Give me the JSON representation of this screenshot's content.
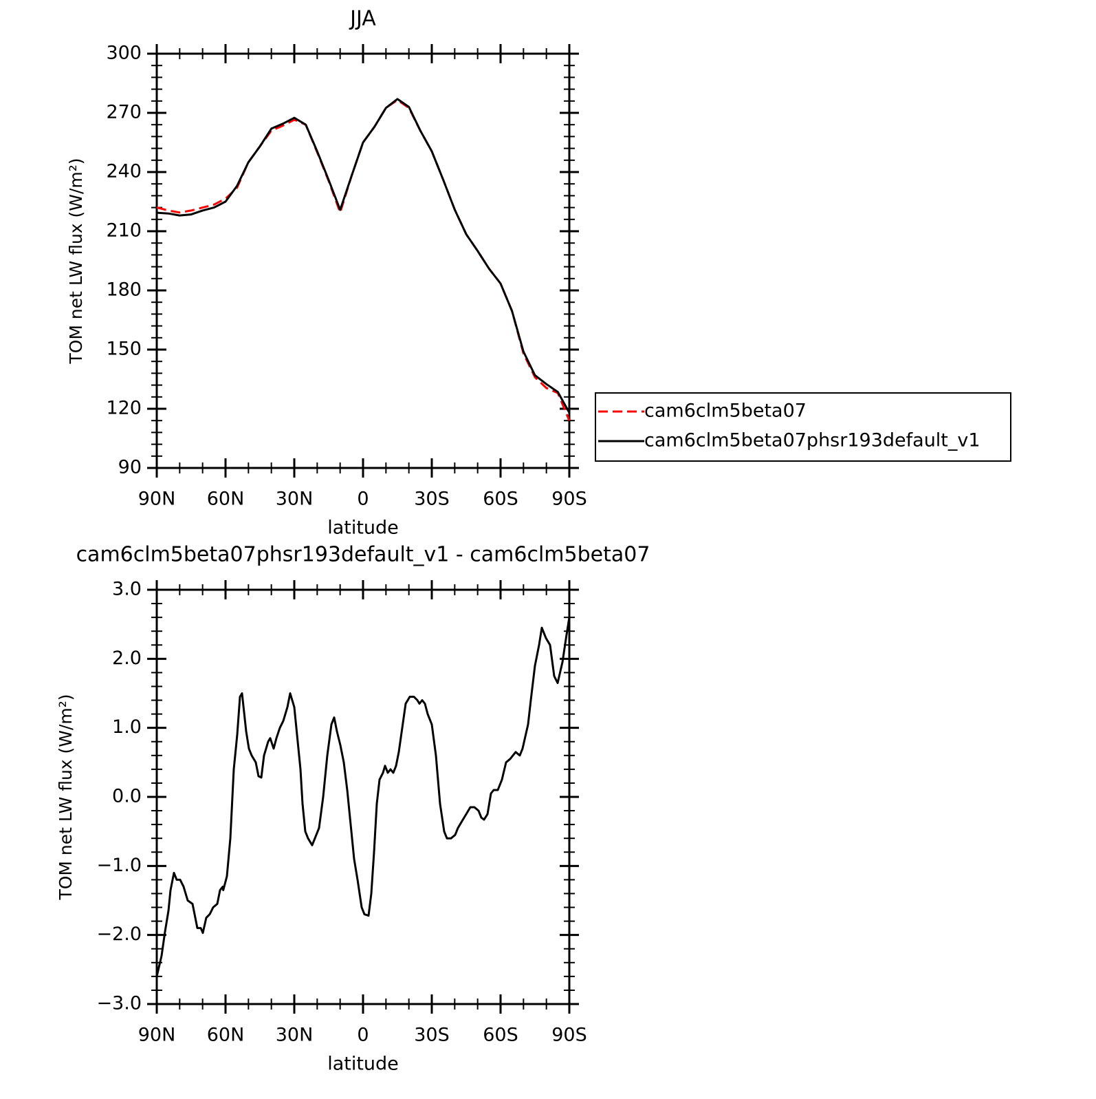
{
  "chart_data": [
    {
      "type": "line",
      "title": "JJA",
      "xlabel": "latitude",
      "ylabel": "TOM net LW flux (W/m²)",
      "x": [
        90,
        85,
        80,
        75,
        70,
        65,
        60,
        55,
        50,
        45,
        40,
        35,
        30,
        25,
        20,
        15,
        10,
        5,
        0,
        -5,
        -10,
        -15,
        -20,
        -25,
        -30,
        -35,
        -40,
        -45,
        -50,
        -55,
        -60,
        -65,
        -70,
        -75,
        -80,
        -85,
        -90
      ],
      "series": [
        {
          "name": "cam6clm5beta07",
          "color": "#ff0000",
          "style": "dashed",
          "values": [
            222,
            220.5,
            219.5,
            220.5,
            222,
            223.5,
            226.5,
            232,
            245,
            253,
            261,
            263.5,
            266.5,
            264,
            250,
            235.5,
            219.5,
            238,
            255,
            263,
            272.5,
            276.5,
            272.5,
            261,
            250.5,
            236,
            221,
            208.5,
            200,
            191,
            183.5,
            169.5,
            148,
            136,
            130.5,
            128,
            114
          ]
        },
        {
          "name": "cam6clm5beta07phsr193default_v1",
          "color": "#000000",
          "style": "solid",
          "values": [
            219.4,
            219,
            218,
            218.5,
            220.5,
            222,
            225,
            233,
            245,
            253,
            262,
            264.5,
            267.5,
            264,
            250.5,
            236,
            220.8,
            238,
            255,
            263,
            272.5,
            277,
            273,
            261,
            250.5,
            236,
            221,
            208.5,
            200,
            191,
            183.5,
            169.5,
            149,
            137,
            132.5,
            128.5,
            118
          ]
        }
      ],
      "xlim": [
        90,
        -90
      ],
      "xticks": [
        {
          "value": 90,
          "label": "90N"
        },
        {
          "value": 60,
          "label": "60N"
        },
        {
          "value": 30,
          "label": "30N"
        },
        0,
        {
          "value": -30,
          "label": "30S"
        },
        {
          "value": -60,
          "label": "60S"
        },
        {
          "value": -90,
          "label": "90S"
        }
      ],
      "ylim": [
        90,
        300
      ],
      "yticks": [
        90,
        120,
        150,
        180,
        210,
        240,
        270,
        300
      ],
      "legend": "right"
    },
    {
      "type": "line",
      "title": "cam6clm5beta07phsr193default_v1 - cam6clm5beta07",
      "xlabel": "latitude",
      "ylabel": "TOM net LW flux (W/m²)",
      "x": [
        90,
        87.9,
        86.4,
        84.9,
        84,
        82.5,
        81.3,
        79.8,
        78.3,
        76.5,
        74.4,
        72.3,
        70.8,
        69.9,
        68.4,
        66.9,
        65.4,
        63.6,
        62.4,
        61.2,
        61,
        59.4,
        57.9,
        56.4,
        54.9,
        53.7,
        52.8,
        51,
        49.8,
        48.6,
        46.8,
        45.6,
        44.4,
        43.2,
        41.4,
        40.5,
        39,
        37.8,
        36.3,
        34.8,
        33,
        31.8,
        30,
        28.8,
        27.3,
        26.4,
        25.2,
        24,
        22.2,
        21,
        19.2,
        17.4,
        15.6,
        13.8,
        12.6,
        11.4,
        9.9,
        8.4,
        6.9,
        5.4,
        3.9,
        2.4,
        0.6,
        -0.6,
        -2.4,
        -3.6,
        -4.8,
        -6,
        -7.2,
        -8.7,
        -9.6,
        -10.8,
        -12,
        -13.2,
        -14.4,
        -15.6,
        -17.1,
        -18.6,
        -20.4,
        -22.2,
        -23.7,
        -24.6,
        -25.8,
        -27,
        -28.2,
        -30,
        -31.8,
        -33.6,
        -35.4,
        -36.6,
        -38.4,
        -40.2,
        -41.4,
        -43.2,
        -45,
        -46.8,
        -48.6,
        -50.4,
        -51.6,
        -52.8,
        -54.3,
        -55.8,
        -57,
        -58.8,
        -60.6,
        -62.4,
        -64.2,
        -65.4,
        -66.6,
        -68.4,
        -69.6,
        -72,
        -73.2,
        -75,
        -76.8,
        -78,
        -79.8,
        -81.6,
        -83.4,
        -84.9,
        -87,
        -88.8,
        -90
      ],
      "series": [
        {
          "color": "#000000",
          "style": "solid",
          "values": [
            -2.6,
            -2.3,
            -1.95,
            -1.65,
            -1.35,
            -1.1,
            -1.2,
            -1.2,
            -1.3,
            -1.5,
            -1.55,
            -1.9,
            -1.9,
            -1.97,
            -1.75,
            -1.7,
            -1.6,
            -1.55,
            -1.35,
            -1.3,
            -1.35,
            -1.15,
            -0.6,
            0.4,
            0.9,
            1.45,
            1.5,
            0.95,
            0.7,
            0.6,
            0.5,
            0.3,
            0.28,
            0.6,
            0.8,
            0.85,
            0.7,
            0.85,
            1.0,
            1.1,
            1.3,
            1.5,
            1.3,
            0.9,
            0.4,
            -0.1,
            -0.5,
            -0.6,
            -0.7,
            -0.6,
            -0.45,
            0.0,
            0.6,
            1.05,
            1.15,
            0.95,
            0.75,
            0.5,
            0.1,
            -0.4,
            -0.9,
            -1.2,
            -1.6,
            -1.7,
            -1.72,
            -1.4,
            -0.8,
            -0.1,
            0.25,
            0.35,
            0.45,
            0.35,
            0.4,
            0.35,
            0.45,
            0.65,
            1.0,
            1.35,
            1.45,
            1.45,
            1.4,
            1.35,
            1.4,
            1.35,
            1.2,
            1.05,
            0.6,
            -0.1,
            -0.5,
            -0.6,
            -0.6,
            -0.55,
            -0.45,
            -0.35,
            -0.25,
            -0.15,
            -0.15,
            -0.2,
            -0.3,
            -0.33,
            -0.25,
            0.05,
            0.1,
            0.1,
            0.25,
            0.5,
            0.55,
            0.6,
            0.65,
            0.6,
            0.7,
            1.05,
            1.4,
            1.9,
            2.2,
            2.45,
            2.3,
            2.2,
            1.75,
            1.65,
            1.95,
            2.35,
            2.6
          ]
        }
      ],
      "xlim": [
        90,
        -90
      ],
      "xticks": [
        {
          "value": 90,
          "label": "90N"
        },
        {
          "value": 60,
          "label": "60N"
        },
        {
          "value": 30,
          "label": "30N"
        },
        0,
        {
          "value": -30,
          "label": "30S"
        },
        {
          "value": -60,
          "label": "60S"
        },
        {
          "value": -90,
          "label": "90S"
        }
      ],
      "ylim": [
        -3,
        3
      ],
      "yticks": [
        {
          "value": -3,
          "label": "−3.0"
        },
        {
          "value": -2,
          "label": "−2.0"
        },
        {
          "value": -1,
          "label": "−1.0"
        },
        {
          "value": 0,
          "label": "0.0"
        },
        {
          "value": 1,
          "label": "1.0"
        },
        {
          "value": 2,
          "label": "2.0"
        },
        {
          "value": 3,
          "label": "3.0"
        }
      ]
    }
  ]
}
